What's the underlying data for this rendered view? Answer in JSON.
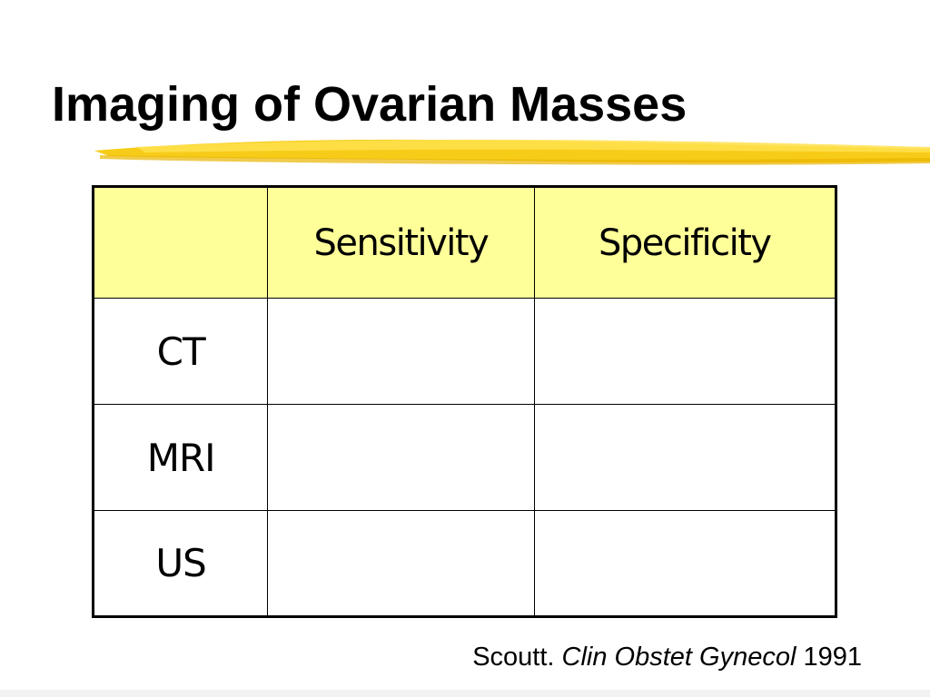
{
  "slide": {
    "title": "Imaging of Ovarian Masses",
    "accent_color": "#f5c400"
  },
  "table": {
    "header_fill": "#ffff99",
    "columns": [
      "",
      "Sensitivity",
      "Specificity"
    ],
    "rows": [
      {
        "label": "CT",
        "sensitivity": "",
        "specificity": ""
      },
      {
        "label": "MRI",
        "sensitivity": "",
        "specificity": ""
      },
      {
        "label": "US",
        "sensitivity": "",
        "specificity": ""
      }
    ]
  },
  "citation": {
    "author": "Scoutt.",
    "journal": "Clin Obstet Gynecol",
    "year": "1991"
  }
}
